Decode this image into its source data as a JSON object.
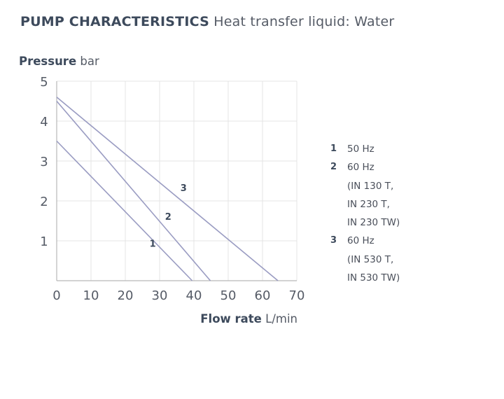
{
  "header": {
    "title_bold": "PUMP CHARACTERISTICS",
    "title_light": "Heat transfer liquid: Water"
  },
  "chart_data": {
    "type": "line",
    "ylabel_bold": "Pressure",
    "ylabel_unit": "bar",
    "xlabel_bold": "Flow rate",
    "xlabel_unit": "L/min",
    "xlim": [
      0,
      70
    ],
    "ylim": [
      0,
      5
    ],
    "xticks": [
      0,
      10,
      20,
      30,
      40,
      50,
      60,
      70
    ],
    "yticks": [
      1,
      2,
      3,
      4,
      5
    ],
    "grid": true,
    "line_color": "#9a9cc2",
    "grid_color": "#e4e4e4",
    "series": [
      {
        "name": "1",
        "label_at": [
          28,
          0.85
        ],
        "points": [
          [
            0,
            3.5
          ],
          [
            39.5,
            0
          ]
        ]
      },
      {
        "name": "2",
        "label_at": [
          32.5,
          1.53
        ],
        "points": [
          [
            0,
            4.5
          ],
          [
            44.8,
            0
          ]
        ]
      },
      {
        "name": "3",
        "label_at": [
          37,
          2.25
        ],
        "points": [
          [
            0,
            4.6
          ],
          [
            64.5,
            0
          ]
        ]
      }
    ]
  },
  "legend": [
    {
      "num": "1",
      "lines": [
        "50 Hz"
      ]
    },
    {
      "num": "2",
      "lines": [
        "60 Hz",
        "(IN 130 T,",
        "IN 230 T,",
        "IN 230 TW)"
      ]
    },
    {
      "num": "3",
      "lines": [
        "60 Hz",
        "(IN 530 T,",
        "IN 530 TW)"
      ]
    }
  ]
}
